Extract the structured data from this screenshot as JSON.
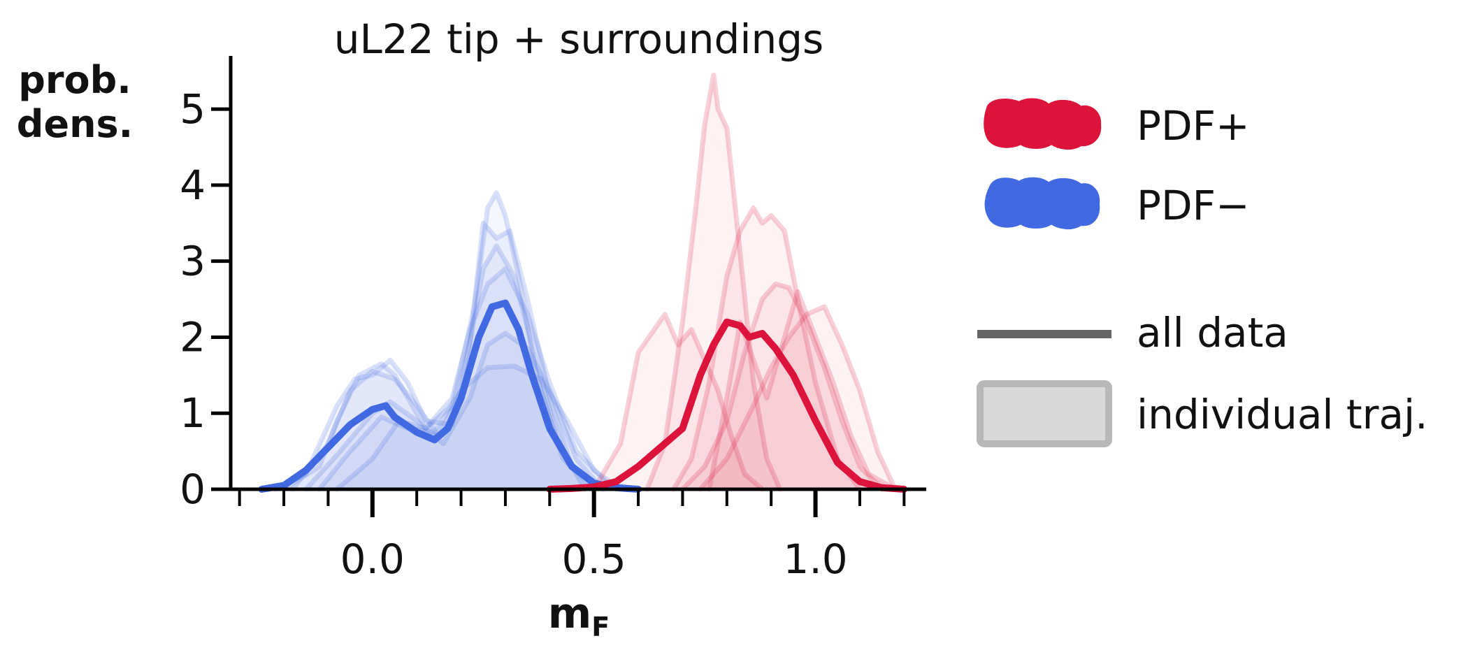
{
  "chart_data": {
    "type": "area",
    "title": "uL22 tip + surroundings",
    "xlabel_main": "m",
    "xlabel_sub": "F",
    "ylabel": [
      "prob.",
      "dens."
    ],
    "xlim": [
      -0.32,
      1.25
    ],
    "ylim": [
      0,
      5.7
    ],
    "xticks": [
      0.0,
      0.5,
      1.0
    ],
    "xtick_labels": [
      "0.0",
      "0.5",
      "1.0"
    ],
    "xminor": [
      -0.3,
      -0.2,
      -0.1,
      0.1,
      0.2,
      0.3,
      0.4,
      0.6,
      0.7,
      0.8,
      0.9,
      1.1,
      1.2
    ],
    "yticks": [
      0,
      1,
      2,
      3,
      4,
      5
    ],
    "ytick_labels": [
      "0",
      "1",
      "2",
      "3",
      "4",
      "5"
    ],
    "colors": {
      "plus": "#dc143c",
      "minus": "#4169e1",
      "all_data": "#666666",
      "individual": "#d9d9d9",
      "individual_edge": "#b8b8b8",
      "axis": "#000000"
    },
    "legend": {
      "position": "right",
      "entries": [
        {
          "label": "PDF+",
          "key": "plus",
          "kind": "blob"
        },
        {
          "label": "PDF−",
          "key": "minus",
          "kind": "blob"
        },
        {
          "label": "all data",
          "key": "all_data",
          "kind": "line"
        },
        {
          "label": "individual traj.",
          "key": "individual",
          "kind": "patch"
        }
      ]
    },
    "series": [
      {
        "name": "PDF−",
        "kind": "all",
        "key": "minus",
        "x": [
          -0.25,
          -0.2,
          -0.15,
          -0.1,
          -0.05,
          0.0,
          0.03,
          0.05,
          0.1,
          0.14,
          0.17,
          0.2,
          0.24,
          0.27,
          0.3,
          0.33,
          0.36,
          0.4,
          0.45,
          0.5,
          0.55,
          0.6
        ],
        "y": [
          0.0,
          0.05,
          0.25,
          0.55,
          0.85,
          1.05,
          1.1,
          0.95,
          0.75,
          0.65,
          0.8,
          1.2,
          2.0,
          2.4,
          2.45,
          2.1,
          1.5,
          0.8,
          0.3,
          0.08,
          0.02,
          0.0
        ]
      },
      {
        "name": "PDF+",
        "kind": "all",
        "key": "plus",
        "x": [
          0.4,
          0.45,
          0.5,
          0.55,
          0.6,
          0.65,
          0.7,
          0.74,
          0.77,
          0.8,
          0.83,
          0.85,
          0.88,
          0.91,
          0.95,
          1.0,
          1.05,
          1.1,
          1.15,
          1.2
        ],
        "y": [
          0.0,
          0.01,
          0.03,
          0.1,
          0.3,
          0.55,
          0.8,
          1.5,
          1.9,
          2.2,
          2.15,
          2.0,
          2.05,
          1.85,
          1.5,
          0.9,
          0.35,
          0.1,
          0.02,
          0.0
        ]
      },
      {
        "name": "",
        "kind": "traj",
        "key": "minus",
        "x": [
          -0.2,
          -0.12,
          -0.08,
          -0.03,
          0.02,
          0.05,
          0.08,
          0.12,
          0.18,
          0.23,
          0.26,
          0.28,
          0.3,
          0.33,
          0.37,
          0.43,
          0.5
        ],
        "y": [
          0.0,
          0.3,
          0.9,
          1.5,
          1.65,
          1.5,
          1.2,
          0.8,
          1.1,
          2.4,
          3.7,
          3.9,
          3.6,
          2.8,
          1.5,
          0.4,
          0.0
        ]
      },
      {
        "name": "",
        "kind": "traj",
        "key": "minus",
        "x": [
          -0.22,
          -0.15,
          -0.08,
          -0.04,
          0.0,
          0.04,
          0.08,
          0.12,
          0.18,
          0.22,
          0.25,
          0.28,
          0.31,
          0.35,
          0.4,
          0.45,
          0.52
        ],
        "y": [
          0.0,
          0.2,
          1.1,
          1.45,
          1.5,
          1.7,
          1.4,
          0.9,
          0.85,
          1.9,
          3.5,
          3.3,
          3.4,
          2.5,
          1.2,
          0.3,
          0.0
        ]
      },
      {
        "name": "",
        "kind": "traj",
        "key": "minus",
        "x": [
          -0.18,
          -0.1,
          -0.05,
          0.0,
          0.05,
          0.1,
          0.15,
          0.2,
          0.25,
          0.28,
          0.32,
          0.36,
          0.42,
          0.48
        ],
        "y": [
          0.0,
          0.6,
          1.3,
          1.55,
          1.45,
          1.1,
          0.7,
          1.3,
          2.9,
          3.2,
          2.8,
          1.9,
          0.6,
          0.0
        ]
      },
      {
        "name": "",
        "kind": "traj",
        "key": "minus",
        "x": [
          -0.15,
          -0.08,
          0.0,
          0.04,
          0.1,
          0.16,
          0.22,
          0.26,
          0.3,
          0.35,
          0.4,
          0.46,
          0.52
        ],
        "y": [
          0.0,
          0.45,
          1.0,
          1.15,
          0.9,
          0.6,
          1.2,
          1.9,
          2.05,
          1.85,
          1.3,
          0.4,
          0.0
        ]
      },
      {
        "name": "",
        "kind": "traj",
        "key": "minus",
        "x": [
          -0.12,
          -0.05,
          0.02,
          0.08,
          0.14,
          0.2,
          0.26,
          0.32,
          0.38,
          0.44,
          0.5,
          0.56
        ],
        "y": [
          0.0,
          0.5,
          0.95,
          0.8,
          0.75,
          1.3,
          1.6,
          1.62,
          1.45,
          0.9,
          0.25,
          0.0
        ]
      },
      {
        "name": "",
        "kind": "traj",
        "key": "minus",
        "x": [
          -0.08,
          0.0,
          0.06,
          0.12,
          0.18,
          0.22,
          0.26,
          0.3,
          0.35,
          0.4,
          0.46,
          0.53,
          0.6
        ],
        "y": [
          0.0,
          0.4,
          0.9,
          0.8,
          1.2,
          2.1,
          2.7,
          2.9,
          2.3,
          1.4,
          0.5,
          0.08,
          0.0
        ]
      },
      {
        "name": "",
        "kind": "traj",
        "key": "plus",
        "x": [
          0.5,
          0.56,
          0.6,
          0.63,
          0.66,
          0.69,
          0.72,
          0.75,
          0.78,
          0.81,
          0.84,
          0.88
        ],
        "y": [
          0.0,
          0.6,
          1.8,
          2.05,
          2.3,
          1.9,
          2.1,
          1.7,
          1.3,
          0.7,
          0.2,
          0.0
        ]
      },
      {
        "name": "",
        "kind": "traj",
        "key": "plus",
        "x": [
          0.62,
          0.66,
          0.7,
          0.73,
          0.75,
          0.77,
          0.78,
          0.8,
          0.83,
          0.86,
          0.89,
          0.92
        ],
        "y": [
          0.0,
          0.6,
          2.2,
          3.7,
          4.8,
          5.45,
          5.0,
          4.75,
          3.1,
          1.4,
          0.4,
          0.0
        ]
      },
      {
        "name": "",
        "kind": "traj",
        "key": "plus",
        "x": [
          0.68,
          0.72,
          0.76,
          0.8,
          0.83,
          0.86,
          0.88,
          0.9,
          0.93,
          0.96,
          1.0,
          1.05,
          1.1
        ],
        "y": [
          0.0,
          0.4,
          1.4,
          2.8,
          3.4,
          3.7,
          3.5,
          3.6,
          3.4,
          2.5,
          1.4,
          0.4,
          0.0
        ]
      },
      {
        "name": "",
        "kind": "traj",
        "key": "plus",
        "x": [
          0.7,
          0.75,
          0.8,
          0.84,
          0.88,
          0.91,
          0.94,
          0.98,
          1.02,
          1.06,
          1.1,
          1.15
        ],
        "y": [
          0.0,
          0.3,
          0.9,
          1.8,
          2.5,
          2.7,
          2.65,
          2.2,
          1.6,
          0.9,
          0.3,
          0.0
        ]
      },
      {
        "name": "",
        "kind": "traj",
        "key": "plus",
        "x": [
          0.74,
          0.8,
          0.86,
          0.9,
          0.94,
          0.98,
          1.02,
          1.06,
          1.1,
          1.14,
          1.18
        ],
        "y": [
          0.0,
          0.4,
          1.1,
          1.6,
          2.0,
          2.3,
          2.4,
          1.9,
          1.3,
          0.5,
          0.0
        ]
      },
      {
        "name": "",
        "kind": "traj",
        "key": "plus",
        "x": [
          0.76,
          0.8,
          0.83,
          0.86,
          0.89,
          0.92,
          0.96,
          1.0,
          1.04,
          1.08,
          1.12,
          1.18
        ],
        "y": [
          0.0,
          1.2,
          2.2,
          1.7,
          1.2,
          1.8,
          2.6,
          2.0,
          1.4,
          0.7,
          0.2,
          0.0
        ]
      }
    ]
  }
}
